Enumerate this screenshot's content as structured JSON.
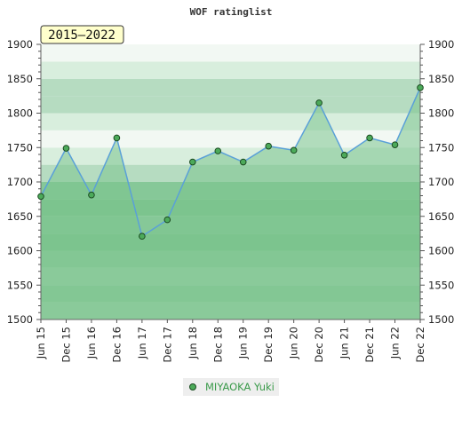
{
  "chart_data": {
    "type": "area",
    "title": "WOF ratinglist",
    "range_label": "2015–2022",
    "categories": [
      "Jun 15",
      "Dec 15",
      "Jun 16",
      "Dec 16",
      "Jun 17",
      "Dec 17",
      "Jun 18",
      "Dec 18",
      "Jun 19",
      "Dec 19",
      "Jun 20",
      "Dec 20",
      "Jun 21",
      "Dec 21",
      "Jun 22",
      "Dec 22"
    ],
    "series": [
      {
        "name": "MIYAOKA Yuki",
        "values": [
          1679,
          1749,
          1681,
          1764,
          1621,
          1645,
          1729,
          1745,
          1729,
          1752,
          1746,
          1815,
          1739,
          1764,
          1754,
          1837
        ]
      }
    ],
    "ylim": [
      1500,
      1900
    ],
    "yticks": [
      1500,
      1550,
      1600,
      1650,
      1700,
      1750,
      1800,
      1850,
      1900
    ],
    "xlabel": "",
    "ylabel": "",
    "legend_position": "bottom-center",
    "colors": {
      "line": "#5aa0d8",
      "marker_fill": "#4caa5a",
      "marker_stroke": "#1a4a20",
      "area_fill": "#7cc48e",
      "band_light": "#f2f8f3",
      "band_mid": "#d8eedd",
      "band_dark": "#b6dcc1",
      "band_green": "#7cc48e",
      "range_box_fill": "#ffffcc",
      "legend_text": "#3a9a4a",
      "legend_bg": "#eeeeee"
    }
  }
}
